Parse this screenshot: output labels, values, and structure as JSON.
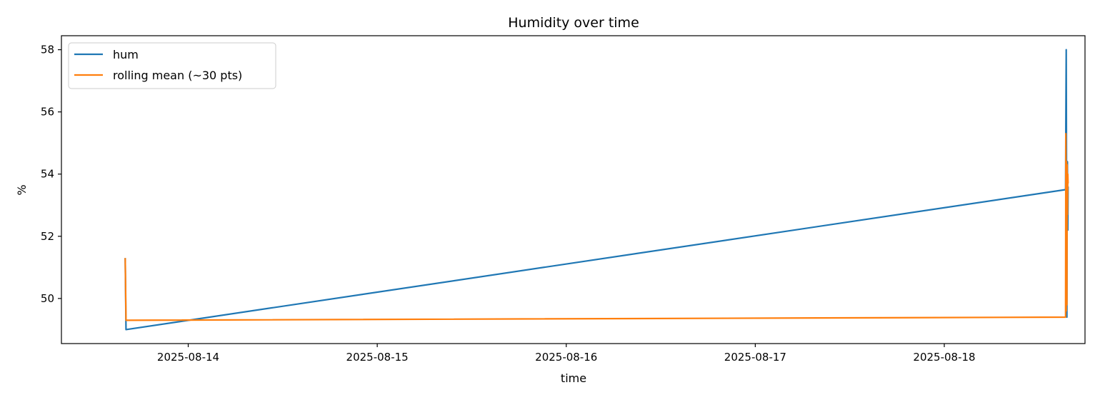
{
  "chart_data": {
    "type": "line",
    "title": "Humidity over time",
    "xlabel": "time",
    "ylabel": "%",
    "x_type": "datetime",
    "xlim": [
      "2025-08-13T07:54",
      "2025-08-18T17:52"
    ],
    "ylim": [
      48.55,
      58.45
    ],
    "x_ticks": [
      "2025-08-14",
      "2025-08-15",
      "2025-08-16",
      "2025-08-17",
      "2025-08-18"
    ],
    "y_ticks": [
      50,
      52,
      54,
      56,
      58
    ],
    "grid": false,
    "legend_position": "top-left",
    "series": [
      {
        "name": "hum",
        "color": "#1f77b4",
        "points": [
          [
            "2025-08-13T16:00",
            51.3
          ],
          [
            "2025-08-13T16:06",
            49.0
          ],
          [
            "2025-08-18T15:24",
            53.5
          ],
          [
            "2025-08-18T15:26",
            55.6
          ],
          [
            "2025-08-18T15:29",
            58.0
          ],
          [
            "2025-08-18T15:31",
            54.4
          ],
          [
            "2025-08-18T15:34",
            49.4
          ],
          [
            "2025-08-18T15:36",
            53.2
          ],
          [
            "2025-08-18T15:38",
            54.4
          ],
          [
            "2025-08-18T15:41",
            52.2
          ],
          [
            "2025-08-18T15:43",
            53.6
          ]
        ]
      },
      {
        "name": "rolling mean (~30 pts)",
        "color": "#ff7f0e",
        "points": [
          [
            "2025-08-13T16:00",
            51.3
          ],
          [
            "2025-08-13T16:06",
            49.3
          ],
          [
            "2025-08-18T15:24",
            49.4
          ],
          [
            "2025-08-18T15:26",
            55.3
          ],
          [
            "2025-08-18T15:29",
            49.6
          ],
          [
            "2025-08-18T15:31",
            54.4
          ],
          [
            "2025-08-18T15:34",
            49.8
          ],
          [
            "2025-08-18T15:36",
            54.3
          ],
          [
            "2025-08-18T15:38",
            52.7
          ],
          [
            "2025-08-18T15:41",
            54.0
          ],
          [
            "2025-08-18T15:43",
            53.7
          ]
        ]
      }
    ]
  }
}
